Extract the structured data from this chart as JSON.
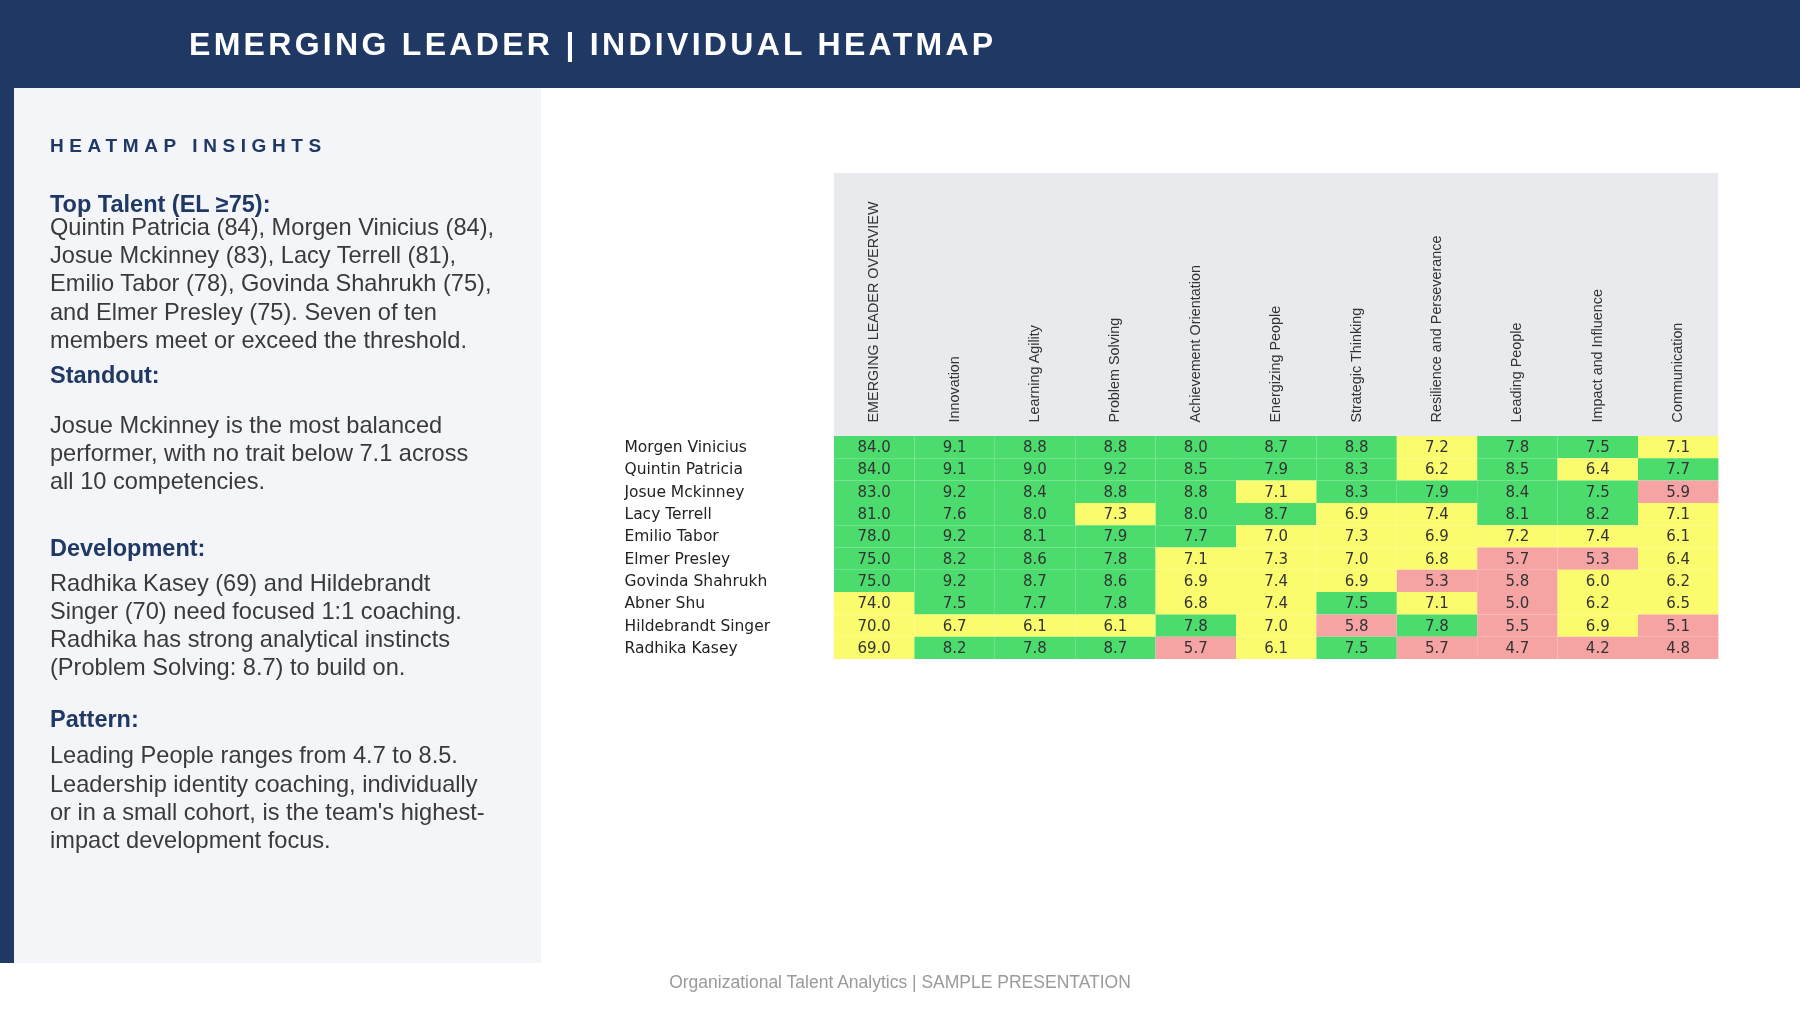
{
  "chart_data": [
    {
      "type": "other",
      "title": "HEATMAP INSIGHTS",
      "annotations": [
        "Top Talent (EL ≥75):",
        "Quintin Patricia (84), Morgen Vinicius (84), Josue Mckinney (83), Lacy Terrell (81), Emilio Tabor (78), Govinda Shahrukh (75), and Elmer Presley (75). Seven of ten members meet or exceed the threshold.",
        "Standout:",
        "Josue Mckinney is the most balanced performer, with no trait below 7.1 across all 10 competencies.",
        "Development:",
        "Radhika Kasey (69) and Hildebrandt Singer (70) need focused 1:1 coaching. Radhika has strong analytical instincts (Problem Solving: 8.7) to build on.",
        "Pattern:",
        "Leading People ranges from 4.7 to 8.5. Leadership identity coaching, individually or in a small cohort, is the team's highest-impact development focus."
      ]
    },
    {
      "type": "heatmap",
      "title": "EMERGING LEADER | INDIVIDUAL HEATMAP",
      "categories": [
        "EMERGING LEADER OVERVIEW",
        "Innovation",
        "Learning Agility",
        "Problem Solving",
        "Achievement Orientation",
        "Energizing People",
        "Strategic Thinking",
        "Resilience and Perseverance",
        "Leading People",
        "Impact and Influence",
        "Communication"
      ],
      "y_categories": [
        "Morgen Vinicius",
        "Quintin Patricia",
        "Josue Mckinney",
        "Lacy Terrell",
        "Emilio Tabor",
        "Elmer Presley",
        "Govinda Shahrukh",
        "Abner Shu",
        "Hildebrandt Singer",
        "Radhika Kasey"
      ],
      "cells": [
        [
          84.0,
          9.1,
          8.8,
          8.8,
          8.0,
          8.7,
          8.8,
          7.2,
          7.8,
          7.5,
          7.1
        ],
        [
          84.0,
          9.1,
          9.0,
          9.2,
          8.5,
          7.9,
          8.3,
          6.2,
          8.5,
          6.4,
          7.7
        ],
        [
          83.0,
          9.2,
          8.4,
          8.8,
          8.8,
          7.1,
          8.3,
          7.9,
          8.4,
          7.5,
          5.9
        ],
        [
          81.0,
          7.6,
          8.0,
          7.3,
          8.0,
          8.7,
          6.9,
          7.4,
          8.1,
          8.2,
          7.1
        ],
        [
          78.0,
          9.2,
          8.1,
          7.9,
          7.7,
          7.0,
          7.3,
          6.9,
          7.2,
          7.4,
          6.1
        ],
        [
          75.0,
          8.2,
          8.6,
          7.8,
          7.1,
          7.3,
          7.0,
          6.8,
          5.7,
          5.3,
          6.4
        ],
        [
          75.0,
          9.2,
          8.7,
          8.6,
          6.9,
          7.4,
          6.9,
          5.3,
          5.8,
          6.0,
          6.2
        ],
        [
          74.0,
          7.5,
          7.7,
          7.8,
          6.8,
          7.4,
          7.5,
          7.1,
          5.0,
          6.2,
          6.5
        ],
        [
          70.0,
          6.7,
          6.1,
          6.1,
          7.8,
          7.0,
          5.8,
          7.8,
          5.5,
          6.9,
          5.1
        ],
        [
          69.0,
          8.2,
          7.8,
          8.7,
          5.7,
          6.1,
          7.5,
          5.7,
          4.7,
          4.2,
          4.8
        ]
      ],
      "cell_labels": [
        [
          "84.0",
          "9.1",
          "8.8",
          "8.8",
          "8.0",
          "8.7",
          "8.8",
          "7.2",
          "7.8",
          "7.5",
          "7.1"
        ],
        [
          "84.0",
          "9.1",
          "9.0",
          "9.2",
          "8.5",
          "7.9",
          "8.3",
          "6.2",
          "8.5",
          "6.4",
          "7.7"
        ],
        [
          "83.0",
          "9.2",
          "8.4",
          "8.8",
          "8.8",
          "7.1",
          "8.3",
          "7.9",
          "8.4",
          "7.5",
          "5.9"
        ],
        [
          "81.0",
          "7.6",
          "8.0",
          "7.3",
          "8.0",
          "8.7",
          "6.9",
          "7.4",
          "8.1",
          "8.2",
          "7.1"
        ],
        [
          "78.0",
          "9.2",
          "8.1",
          "7.9",
          "7.7",
          "7.0",
          "7.3",
          "6.9",
          "7.2",
          "7.4",
          "6.1"
        ],
        [
          "75.0",
          "8.2",
          "8.6",
          "7.8",
          "7.1",
          "7.3",
          "7.0",
          "6.8",
          "5.7",
          "5.3",
          "6.4"
        ],
        [
          "75.0",
          "9.2",
          "8.7",
          "8.6",
          "6.9",
          "7.4",
          "6.9",
          "5.3",
          "5.8",
          "6.0",
          "6.2"
        ],
        [
          "74.0",
          "7.5",
          "7.7",
          "7.8",
          "6.8",
          "7.4",
          "7.5",
          "7.1",
          "5.0",
          "6.2",
          "6.5"
        ],
        [
          "70.0",
          "6.7",
          "6.1",
          "6.1",
          "7.8",
          "7.0",
          "5.8",
          "7.8",
          "5.5",
          "6.9",
          "5.1"
        ],
        [
          "69.0",
          "8.2",
          "7.8",
          "8.7",
          "5.7",
          "6.1",
          "7.5",
          "5.7",
          "4.7",
          "4.2",
          "4.8"
        ]
      ],
      "colors": [
        [
          "#4cdc6e",
          "#4cdc6e",
          "#4cdc6e",
          "#4cdc6e",
          "#4cdc6e",
          "#4cdc6e",
          "#4cdc6e",
          "#fbfb6e",
          "#4cdc6e",
          "#4cdc6e",
          "#fbfb6e"
        ],
        [
          "#4cdc6e",
          "#4cdc6e",
          "#4cdc6e",
          "#4cdc6e",
          "#4cdc6e",
          "#4cdc6e",
          "#4cdc6e",
          "#fbfb6e",
          "#4cdc6e",
          "#fbfb6e",
          "#4cdc6e"
        ],
        [
          "#4cdc6e",
          "#4cdc6e",
          "#4cdc6e",
          "#4cdc6e",
          "#4cdc6e",
          "#fbfb6e",
          "#4cdc6e",
          "#4cdc6e",
          "#4cdc6e",
          "#4cdc6e",
          "#f5a3a3"
        ],
        [
          "#4cdc6e",
          "#4cdc6e",
          "#4cdc6e",
          "#fbfb6e",
          "#4cdc6e",
          "#4cdc6e",
          "#fbfb6e",
          "#fbfb6e",
          "#4cdc6e",
          "#4cdc6e",
          "#fbfb6e"
        ],
        [
          "#4cdc6e",
          "#4cdc6e",
          "#4cdc6e",
          "#4cdc6e",
          "#4cdc6e",
          "#fbfb6e",
          "#fbfb6e",
          "#fbfb6e",
          "#fbfb6e",
          "#fbfb6e",
          "#fbfb6e"
        ],
        [
          "#4cdc6e",
          "#4cdc6e",
          "#4cdc6e",
          "#4cdc6e",
          "#fbfb6e",
          "#fbfb6e",
          "#fbfb6e",
          "#fbfb6e",
          "#f5a3a3",
          "#f5a3a3",
          "#fbfb6e"
        ],
        [
          "#4cdc6e",
          "#4cdc6e",
          "#4cdc6e",
          "#4cdc6e",
          "#fbfb6e",
          "#fbfb6e",
          "#fbfb6e",
          "#f5a3a3",
          "#f5a3a3",
          "#fbfb6e",
          "#fbfb6e"
        ],
        [
          "#fbfb6e",
          "#4cdc6e",
          "#4cdc6e",
          "#4cdc6e",
          "#fbfb6e",
          "#fbfb6e",
          "#4cdc6e",
          "#fbfb6e",
          "#f5a3a3",
          "#fbfb6e",
          "#fbfb6e"
        ],
        [
          "#fbfb6e",
          "#fbfb6e",
          "#fbfb6e",
          "#fbfb6e",
          "#4cdc6e",
          "#fbfb6e",
          "#f5a3a3",
          "#4cdc6e",
          "#f5a3a3",
          "#fbfb6e",
          "#f5a3a3"
        ],
        [
          "#fbfb6e",
          "#4cdc6e",
          "#4cdc6e",
          "#4cdc6e",
          "#f5a3a3",
          "#fbfb6e",
          "#4cdc6e",
          "#f5a3a3",
          "#f5a3a3",
          "#f5a3a3",
          "#f5a3a3"
        ]
      ],
      "annotations": [
        "Organizational Talent Analytics | SAMPLE PRESENTATION"
      ]
    }
  ]
}
